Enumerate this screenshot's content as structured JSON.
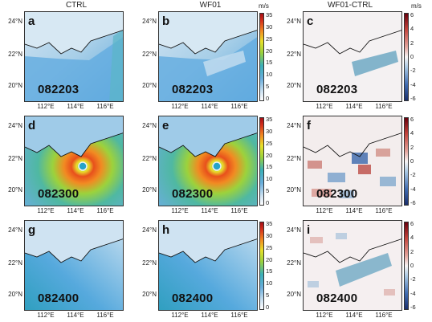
{
  "columns": [
    {
      "title": "CTRL"
    },
    {
      "title": "WF01"
    },
    {
      "title": "WF01-CTRL"
    }
  ],
  "units": {
    "speed": "m/s",
    "diff": "m/s"
  },
  "lat_labels": [
    "24°N",
    "22°N",
    "20°N"
  ],
  "lon_labels": [
    "112°E",
    "114°E",
    "116°E"
  ],
  "speed_colorbar": {
    "ticks": [
      "35",
      "30",
      "25",
      "20",
      "15",
      "10",
      "5",
      "0"
    ],
    "range": [
      0,
      35
    ]
  },
  "diff_colorbar": {
    "ticks": [
      "6",
      "4",
      "2",
      "0",
      "-2",
      "-4",
      "-6"
    ],
    "range": [
      -6,
      6
    ]
  },
  "panels": [
    {
      "letter": "a",
      "time": "082203"
    },
    {
      "letter": "b",
      "time": "082203"
    },
    {
      "letter": "c",
      "time": "082203"
    },
    {
      "letter": "d",
      "time": "082300"
    },
    {
      "letter": "e",
      "time": "082300"
    },
    {
      "letter": "f",
      "time": "082300"
    },
    {
      "letter": "g",
      "time": "082400"
    },
    {
      "letter": "h",
      "time": "082400"
    },
    {
      "letter": "i",
      "time": "082400"
    }
  ]
}
